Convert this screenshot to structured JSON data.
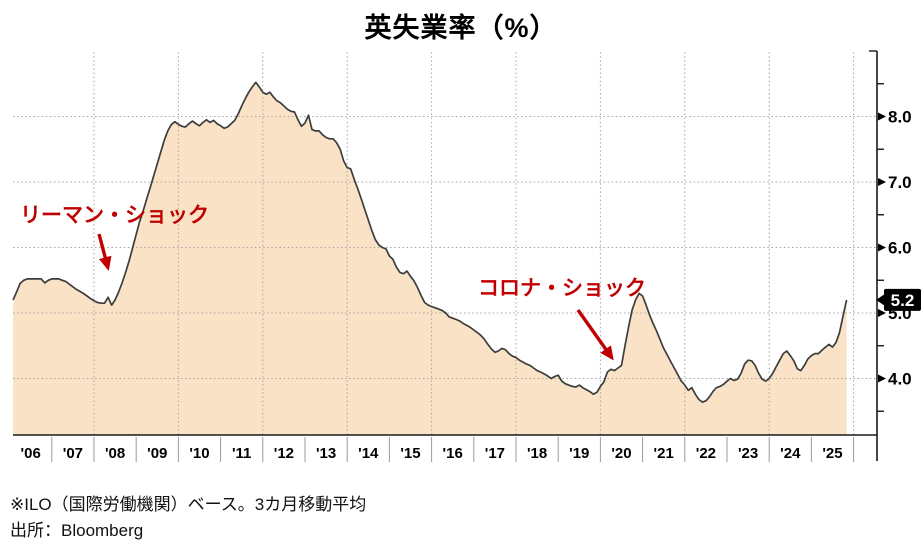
{
  "title": "英失業率（%）",
  "annotations": {
    "lehman": {
      "label": "リーマン・ショック"
    },
    "covid": {
      "label": "コロナ・ショック"
    }
  },
  "badge": {
    "value": "5.2"
  },
  "footnotes": {
    "line1": "※ILO（国際労働機関）ベース。3カ月移動平均",
    "line2": "出所：Bloomberg"
  },
  "colors": {
    "area_fill": "#fae2c7",
    "line": "#3d3d3d",
    "annotation_red": "#c00000",
    "grid": "#a5a5a5",
    "badge_bg": "#000000",
    "badge_text": "#ffffff"
  },
  "chart_data": {
    "type": "area",
    "title": "英失業率（%）",
    "unit": "%",
    "frequency": "monthly",
    "start": "2006-02",
    "end": "2025-11",
    "grid": "dotted",
    "legend": "none",
    "x_tick_labels": [
      "'06",
      "'07",
      "'08",
      "'09",
      "'10",
      "'11",
      "'12",
      "'13",
      "'14",
      "'15",
      "'16",
      "'17",
      "'18",
      "'19",
      "'20",
      "'21",
      "'22",
      "'23",
      "'24",
      "'25"
    ],
    "y_ticks": [
      4.0,
      5.0,
      6.0,
      7.0,
      8.0
    ],
    "y_minor_ticks": [
      3.5,
      4.5,
      5.5,
      6.5,
      7.5,
      8.5
    ],
    "ylim": [
      3.1,
      9.0
    ],
    "last_value": 5.2,
    "values": [
      5.2,
      5.32,
      5.45,
      5.5,
      5.52,
      5.52,
      5.52,
      5.52,
      5.52,
      5.46,
      5.5,
      5.52,
      5.52,
      5.52,
      5.5,
      5.48,
      5.44,
      5.4,
      5.36,
      5.33,
      5.3,
      5.26,
      5.22,
      5.19,
      5.16,
      5.15,
      5.15,
      5.24,
      5.12,
      5.2,
      5.32,
      5.46,
      5.62,
      5.8,
      6.0,
      6.2,
      6.4,
      6.56,
      6.74,
      6.92,
      7.1,
      7.28,
      7.46,
      7.64,
      7.78,
      7.88,
      7.92,
      7.88,
      7.85,
      7.84,
      7.89,
      7.93,
      7.89,
      7.86,
      7.91,
      7.95,
      7.91,
      7.94,
      7.89,
      7.86,
      7.82,
      7.84,
      7.89,
      7.94,
      8.04,
      8.16,
      8.27,
      8.37,
      8.45,
      8.52,
      8.45,
      8.37,
      8.34,
      8.37,
      8.3,
      8.24,
      8.21,
      8.16,
      8.11,
      8.08,
      8.07,
      7.95,
      7.85,
      7.9,
      8.02,
      7.8,
      7.78,
      7.78,
      7.72,
      7.68,
      7.66,
      7.66,
      7.6,
      7.5,
      7.32,
      7.22,
      7.2,
      7.04,
      6.9,
      6.74,
      6.58,
      6.42,
      6.26,
      6.12,
      6.04,
      6.0,
      5.98,
      5.87,
      5.82,
      5.7,
      5.62,
      5.6,
      5.64,
      5.56,
      5.49,
      5.39,
      5.27,
      5.16,
      5.12,
      5.1,
      5.08,
      5.06,
      5.04,
      5.0,
      4.94,
      4.92,
      4.9,
      4.88,
      4.84,
      4.81,
      4.78,
      4.74,
      4.7,
      4.66,
      4.6,
      4.52,
      4.45,
      4.4,
      4.42,
      4.46,
      4.44,
      4.38,
      4.34,
      4.32,
      4.28,
      4.25,
      4.22,
      4.2,
      4.16,
      4.12,
      4.1,
      4.07,
      4.04,
      4.0,
      4.03,
      4.05,
      3.96,
      3.92,
      3.9,
      3.88,
      3.87,
      3.9,
      3.86,
      3.83,
      3.8,
      3.76,
      3.79,
      3.88,
      3.95,
      4.1,
      4.14,
      4.12,
      4.16,
      4.2,
      4.5,
      4.78,
      5.04,
      5.2,
      5.3,
      5.26,
      5.12,
      4.97,
      4.84,
      4.72,
      4.59,
      4.46,
      4.36,
      4.26,
      4.16,
      4.06,
      3.96,
      3.9,
      3.82,
      3.86,
      3.76,
      3.68,
      3.64,
      3.66,
      3.72,
      3.8,
      3.86,
      3.88,
      3.91,
      3.96,
      4.0,
      3.97,
      3.99,
      4.08,
      4.22,
      4.28,
      4.27,
      4.2,
      4.08,
      3.99,
      3.96,
      4.0,
      4.08,
      4.18,
      4.28,
      4.38,
      4.42,
      4.35,
      4.27,
      4.15,
      4.12,
      4.2,
      4.3,
      4.35,
      4.38,
      4.38,
      4.43,
      4.48,
      4.52,
      4.48,
      4.55,
      4.7,
      4.95,
      5.2
    ]
  }
}
